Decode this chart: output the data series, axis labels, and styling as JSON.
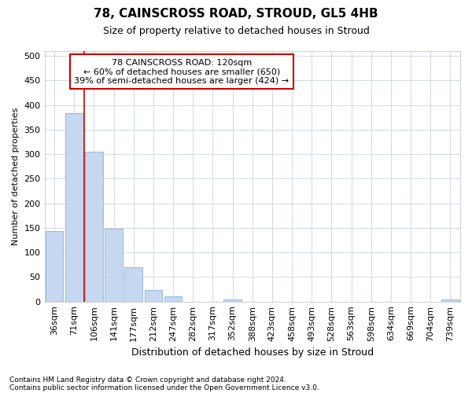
{
  "title1": "78, CAINSCROSS ROAD, STROUD, GL5 4HB",
  "title2": "Size of property relative to detached houses in Stroud",
  "xlabel": "Distribution of detached houses by size in Stroud",
  "ylabel": "Number of detached properties",
  "bar_labels": [
    "36sqm",
    "71sqm",
    "106sqm",
    "141sqm",
    "177sqm",
    "212sqm",
    "247sqm",
    "282sqm",
    "317sqm",
    "352sqm",
    "388sqm",
    "423sqm",
    "458sqm",
    "493sqm",
    "528sqm",
    "563sqm",
    "598sqm",
    "634sqm",
    "669sqm",
    "704sqm",
    "739sqm"
  ],
  "bar_heights": [
    143,
    383,
    305,
    148,
    70,
    24,
    10,
    0,
    0,
    5,
    0,
    0,
    0,
    0,
    0,
    0,
    0,
    0,
    0,
    0,
    5
  ],
  "bar_color": "#c5d8f0",
  "bar_edge_color": "#8ab0d8",
  "vline_x": 2.0,
  "vline_color": "#cc0000",
  "annotation_text": "78 CAINSCROSS ROAD: 120sqm\n← 60% of detached houses are smaller (650)\n39% of semi-detached houses are larger (424) →",
  "annotation_box_color": "#ffffff",
  "annotation_box_edge": "#cc0000",
  "ylim_max": 510,
  "yticks": [
    0,
    50,
    100,
    150,
    200,
    250,
    300,
    350,
    400,
    450,
    500
  ],
  "footnote_line1": "Contains HM Land Registry data © Crown copyright and database right 2024.",
  "footnote_line2": "Contains public sector information licensed under the Open Government Licence v3.0.",
  "bg_color": "#ffffff",
  "plot_bg_color": "#ffffff",
  "grid_color": "#d0d8e8",
  "title1_fontsize": 11,
  "title2_fontsize": 9,
  "xlabel_fontsize": 9,
  "ylabel_fontsize": 8,
  "tick_fontsize": 8,
  "annot_fontsize": 8,
  "footnote_fontsize": 6.5
}
